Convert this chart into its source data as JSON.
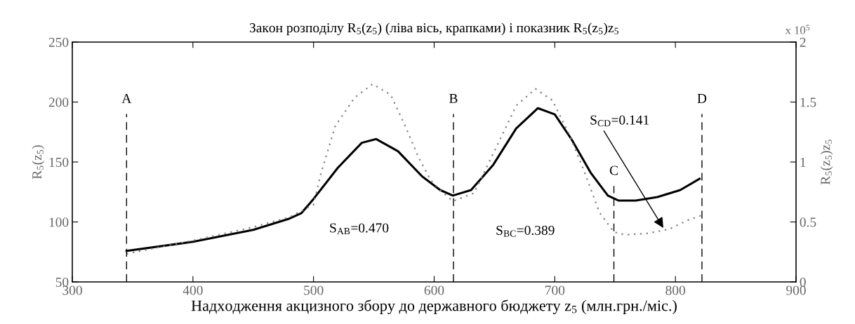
{
  "chart_data": {
    "type": "line",
    "title": "Закон розподілу R$_{5}$(z$_{5}$) (ліва вісь, крапками) і показник R$_{5}$(z$_{5}$)z$_{5}$",
    "xlabel": "Надходження акцизного збору до державного бюджету z$_{5}$ (млн.грн./міс.)",
    "ylabel": "R$_{5}$(z$_{5}$)",
    "y2label": "R$_{5}$(z$_{5}$)z$_{5}$",
    "xlim": [
      300,
      900
    ],
    "xticks": [
      300,
      400,
      500,
      600,
      700,
      800,
      900
    ],
    "ylim": [
      50,
      250
    ],
    "yticks": [
      50,
      100,
      150,
      200,
      250
    ],
    "y2lim": [
      0,
      2
    ],
    "y2ticks": [
      0,
      0.5,
      1,
      1.5,
      2
    ],
    "grid": false,
    "legend": false,
    "series": [
      {
        "color": "#808080",
        "line_style": "dotted",
        "x": [
          345,
          400,
          450,
          480,
          500,
          506,
          518,
          534,
          549,
          564,
          576,
          587,
          597,
          605,
          615.5,
          633,
          649,
          668,
          684,
          698,
          712,
          725,
          737,
          749,
          758,
          776,
          795,
          809,
          822
        ],
        "values": [
          73.5,
          84.5,
          95.7,
          104,
          114.5,
          140,
          180,
          203.6,
          215,
          206,
          180,
          154,
          135,
          126.6,
          117.3,
          124,
          157,
          197,
          211,
          201.4,
          173,
          140.6,
          108,
          91.6,
          89.3,
          90.4,
          94,
          101,
          105.6
        ]
      },
      {
        "color": "#000000",
        "line_style": "solid",
        "axis": "y2",
        "x": [
          345,
          400,
          450,
          480,
          490,
          500,
          520,
          540,
          552,
          570,
          590,
          605,
          615.5,
          630.6,
          649,
          668,
          686,
          700,
          714,
          730,
          744,
          753,
          767,
          785,
          804,
          820
        ],
        "values": [
          0.258,
          0.335,
          0.434,
          0.528,
          0.574,
          0.692,
          0.95,
          1.16,
          1.191,
          1.09,
          0.88,
          0.766,
          0.72,
          0.766,
          0.977,
          1.28,
          1.449,
          1.397,
          1.187,
          0.907,
          0.72,
          0.678,
          0.678,
          0.708,
          0.766,
          0.86
        ]
      }
    ],
    "ref_lines": [
      {
        "axis": "x",
        "value": 345,
        "label": "A",
        "color": "#000000",
        "line_style": "dashed"
      },
      {
        "axis": "x",
        "value": 616,
        "label": "B",
        "color": "#000000",
        "line_style": "dashed"
      },
      {
        "axis": "x",
        "value": 749,
        "label": "C",
        "color": "#000000",
        "line_style": "dashed"
      },
      {
        "axis": "x",
        "value": 822,
        "label": "D",
        "color": "#000000",
        "line_style": "dashed"
      }
    ],
    "annotations": [
      "S$_{AB}$=0.470",
      "S$_{BC}$=0.389",
      {
        "text": "S$_{CD}$=0.141",
        "x": 790,
        "y": 95
      },
      "x 10$^{5}$"
    ]
  }
}
